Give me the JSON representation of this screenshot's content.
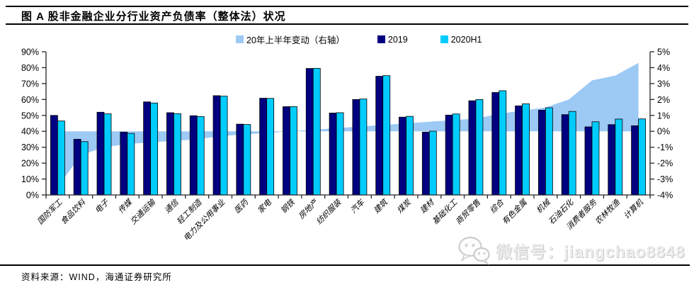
{
  "header": {
    "title": "图  A 股非金融企业分行业资产负债率（整体法）状况"
  },
  "legend": {
    "items": [
      {
        "label": "20年上半年变动（右轴）",
        "color": "#9DC9F5"
      },
      {
        "label": "2019",
        "color": "#000080"
      },
      {
        "label": "2020H1",
        "color": "#00CCFF"
      }
    ]
  },
  "chart_data": {
    "type": "bar",
    "title": "图 A 股非金融企业分行业资产负债率（整体法）状况",
    "categories": [
      "国防军工",
      "食品饮料",
      "电子",
      "传媒",
      "交通运输",
      "通信",
      "轻工制造",
      "电力及公用事业",
      "医药",
      "家电",
      "钢铁",
      "房地产",
      "纺织服装",
      "汽车",
      "建筑",
      "煤炭",
      "建材",
      "基础化工",
      "商贸零售",
      "综合",
      "有色金属",
      "机械",
      "石油石化",
      "消费者服务",
      "农林牧渔",
      "计算机"
    ],
    "series": [
      {
        "name": "20年上半年变动（右轴）",
        "type": "area",
        "axis": "right",
        "color": "#9DC9F5",
        "values": [
          -3.5,
          -1.5,
          -1.0,
          -0.8,
          -0.7,
          -0.6,
          -0.5,
          -0.3,
          -0.2,
          -0.1,
          0.0,
          0.1,
          0.2,
          0.3,
          0.4,
          0.5,
          0.6,
          0.7,
          0.8,
          1.1,
          1.3,
          1.5,
          2.0,
          3.2,
          3.5,
          4.3
        ]
      },
      {
        "name": "2019",
        "type": "bar",
        "axis": "left",
        "color": "#000080",
        "values": [
          50.0,
          35.0,
          52.0,
          39.5,
          58.5,
          51.7,
          49.8,
          62.4,
          44.5,
          60.8,
          55.5,
          79.5,
          51.5,
          60.0,
          74.6,
          48.9,
          39.5,
          50.2,
          59.2,
          64.4,
          56.0,
          53.3,
          50.5,
          42.8,
          44.2,
          43.5
        ]
      },
      {
        "name": "2020H1",
        "type": "bar",
        "axis": "left",
        "color": "#00CCFF",
        "values": [
          46.5,
          33.5,
          51.0,
          38.7,
          57.8,
          51.1,
          49.3,
          62.1,
          44.3,
          60.7,
          55.5,
          79.6,
          51.7,
          60.3,
          75.0,
          49.4,
          40.1,
          50.9,
          60.0,
          65.5,
          57.3,
          54.8,
          52.5,
          46.0,
          47.7,
          47.8
        ]
      }
    ],
    "left_axis": {
      "min": 0,
      "max": 90,
      "step": 10,
      "unit": "%",
      "ticks": [
        "0%",
        "10%",
        "20%",
        "30%",
        "40%",
        "50%",
        "60%",
        "70%",
        "80%",
        "90%"
      ]
    },
    "right_axis": {
      "min": -4,
      "max": 5,
      "step": 1,
      "unit": "%",
      "ticks": [
        "-4%",
        "-3%",
        "-2%",
        "-1%",
        "0%",
        "1%",
        "2%",
        "3%",
        "4%",
        "5%"
      ]
    },
    "grid": false,
    "legend_position": "top"
  },
  "watermark": {
    "icon": "wechat-icon",
    "text": "微信号：jiangchao8848"
  },
  "footer": {
    "source": "资料来源：WIND，海通证券研究所"
  }
}
